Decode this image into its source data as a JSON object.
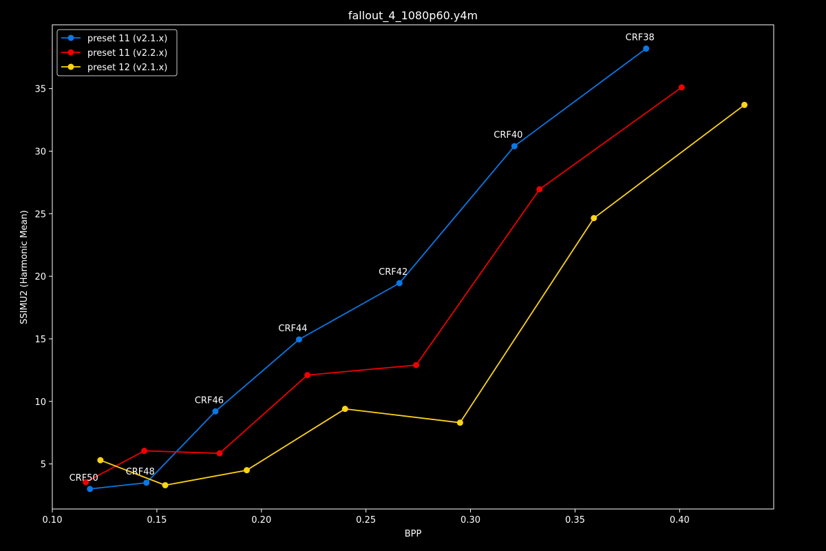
{
  "chart_data": {
    "type": "line",
    "title": "fallout_4_1080p60.y4m",
    "xlabel": "BPP",
    "ylabel": "SSIMU2 (Harmonic Mean)",
    "xlim": [
      0.1,
      0.445
    ],
    "ylim": [
      1.4,
      40.1
    ],
    "xticks": [
      0.1,
      0.15,
      0.2,
      0.25,
      0.3,
      0.35,
      0.4
    ],
    "xtick_labels": [
      "0.10",
      "0.15",
      "0.20",
      "0.25",
      "0.30",
      "0.35",
      "0.40"
    ],
    "yticks": [
      5,
      10,
      15,
      20,
      25,
      30,
      35
    ],
    "ytick_labels": [
      "5",
      "10",
      "15",
      "20",
      "25",
      "30",
      "35"
    ],
    "grid": false,
    "legend_position": "top-left",
    "series": [
      {
        "name": "preset 11 (v2.1.x)",
        "color": "#0a78e6",
        "x": [
          0.118,
          0.145,
          0.178,
          0.218,
          0.266,
          0.321,
          0.384
        ],
        "y": [
          3.0,
          3.5,
          9.2,
          14.95,
          19.45,
          30.4,
          38.2
        ]
      },
      {
        "name": "preset 11 (v2.2.x)",
        "color": "#f00000",
        "x": [
          0.116,
          0.144,
          0.18,
          0.222,
          0.274,
          0.333,
          0.401
        ],
        "y": [
          3.55,
          6.05,
          5.85,
          12.1,
          12.9,
          26.95,
          35.1
        ]
      },
      {
        "name": "preset 12 (v2.1.x)",
        "color": "#ffd316",
        "x": [
          0.123,
          0.154,
          0.193,
          0.24,
          0.295,
          0.359,
          0.431
        ],
        "y": [
          5.3,
          3.3,
          4.5,
          9.4,
          8.3,
          24.65,
          33.7
        ]
      }
    ],
    "annotations": [
      {
        "text": "CRF50",
        "x": 0.118,
        "y": 3.0
      },
      {
        "text": "CRF48",
        "x": 0.145,
        "y": 3.5
      },
      {
        "text": "CRF46",
        "x": 0.178,
        "y": 9.2
      },
      {
        "text": "CRF44",
        "x": 0.218,
        "y": 14.95
      },
      {
        "text": "CRF42",
        "x": 0.266,
        "y": 19.45
      },
      {
        "text": "CRF40",
        "x": 0.321,
        "y": 30.4
      },
      {
        "text": "CRF38",
        "x": 0.384,
        "y": 38.2
      }
    ]
  }
}
